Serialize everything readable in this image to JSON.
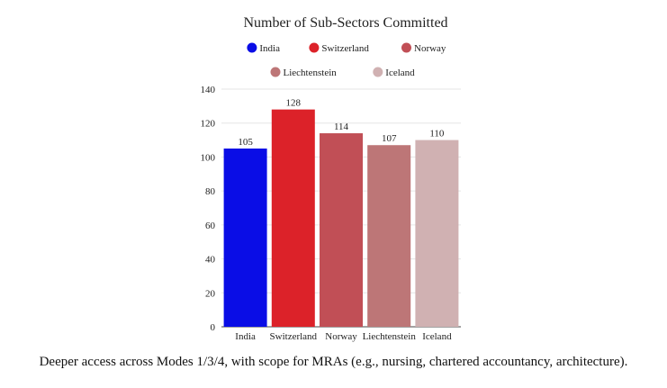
{
  "chart_data": {
    "type": "bar",
    "title": "Number of Sub-Sectors Committed",
    "categories": [
      "India",
      "Switzerland",
      "Norway",
      "Liechtenstein",
      "Iceland"
    ],
    "values": [
      105,
      128,
      114,
      107,
      110
    ],
    "colors": [
      "#0a0de6",
      "#dc2229",
      "#c14f56",
      "#bd7677",
      "#d0b1b2"
    ],
    "xlabel": "",
    "ylabel": "",
    "ylim": [
      0,
      140
    ],
    "yticks": [
      0,
      20,
      40,
      60,
      80,
      100,
      120,
      140
    ],
    "grid": true,
    "legend_position": "top"
  },
  "caption": "Deeper access across Modes 1/3/4, with scope for MRAs (e.g., nursing, chartered accountancy, architecture)."
}
